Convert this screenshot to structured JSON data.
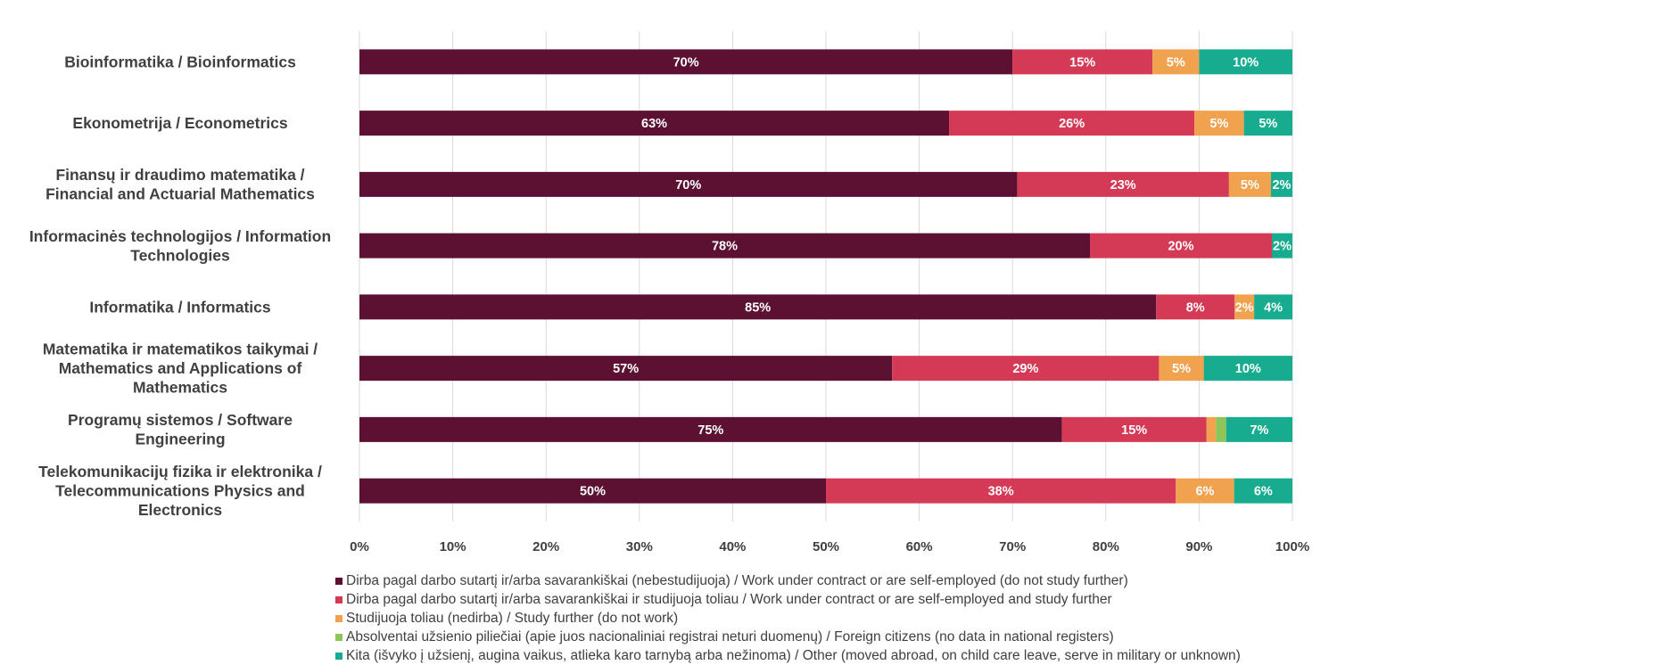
{
  "chart_data": {
    "type": "bar",
    "orientation": "horizontal",
    "stacked": "percent",
    "xlim": [
      0,
      100
    ],
    "x_ticks": [
      "0%",
      "10%",
      "20%",
      "30%",
      "40%",
      "50%",
      "60%",
      "70%",
      "80%",
      "90%",
      "100%"
    ],
    "categories": [
      [
        "Bioinformatika / Bioinformatics"
      ],
      [
        "Ekonometrija / Econometrics"
      ],
      [
        "Finansų ir draudimo matematika /",
        "Financial and Actuarial Mathematics"
      ],
      [
        "Informacinės technologijos / Information",
        "Technologies"
      ],
      [
        "Informatika / Informatics"
      ],
      [
        "Matematika ir matematikos taikymai /",
        "Mathematics and Applications of",
        "Mathematics"
      ],
      [
        "Programų sistemos / Software",
        "Engineering"
      ],
      [
        "Telekomunikacijų fizika ir elektronika /",
        "Telecommunications Physics and",
        "Electronics"
      ]
    ],
    "series": [
      {
        "name": "Dirba pagal darbo sutartį ir/arba savarankiškai (nebestudijuoja) / Work under contract or are self-employed (do not study further)",
        "color": "#5c1133",
        "values": [
          70,
          63.2,
          70.5,
          78.3,
          85.4,
          57.1,
          75.3,
          50
        ],
        "labels": [
          "70%",
          "63%",
          "70%",
          "78%",
          "85%",
          "57%",
          "75%",
          "50%"
        ]
      },
      {
        "name": "Dirba pagal darbo sutartį ir/arba savarankiškai  ir studijuoja toliau / Work under contract or are self-employed and study further",
        "color": "#d43a55",
        "values": [
          15,
          26.3,
          22.7,
          19.5,
          8.4,
          28.6,
          15.5,
          37.5
        ],
        "labels": [
          "15%",
          "26%",
          "23%",
          "20%",
          "8%",
          "29%",
          "15%",
          "38%"
        ]
      },
      {
        "name": "Studijuoja toliau (nedirba) / Study further (do not work)",
        "color": "#f0a24f",
        "values": [
          5,
          5.3,
          4.5,
          0,
          2.1,
          4.8,
          1,
          6.25
        ],
        "labels": [
          "5%",
          "5%",
          "5%",
          "",
          "2%",
          "5%",
          "",
          "6%"
        ]
      },
      {
        "name": "Absolventai užsienio piliečiai (apie juos nacionaliniai registrai neturi duomenų) / Foreign citizens (no data in national registers)",
        "color": "#8fc45a",
        "values": [
          0,
          0,
          0,
          0,
          0,
          0,
          1.1,
          0
        ],
        "labels": [
          "",
          "",
          "",
          "",
          "",
          "",
          "",
          ""
        ]
      },
      {
        "name": "Kita (išvyko į užsienį, augina vaikus, atlieka karo tarnybą arba nežinoma) / Other (moved abroad, on child care leave, serve in military or unknown)",
        "color": "#17ab8f",
        "values": [
          10,
          5.2,
          2.3,
          2.2,
          4.1,
          9.5,
          7.1,
          6.25
        ],
        "labels": [
          "10%",
          "5%",
          "2%",
          "2%",
          "4%",
          "10%",
          "7%",
          "6%"
        ]
      }
    ],
    "legend_position": "bottom-left",
    "grid": true
  }
}
